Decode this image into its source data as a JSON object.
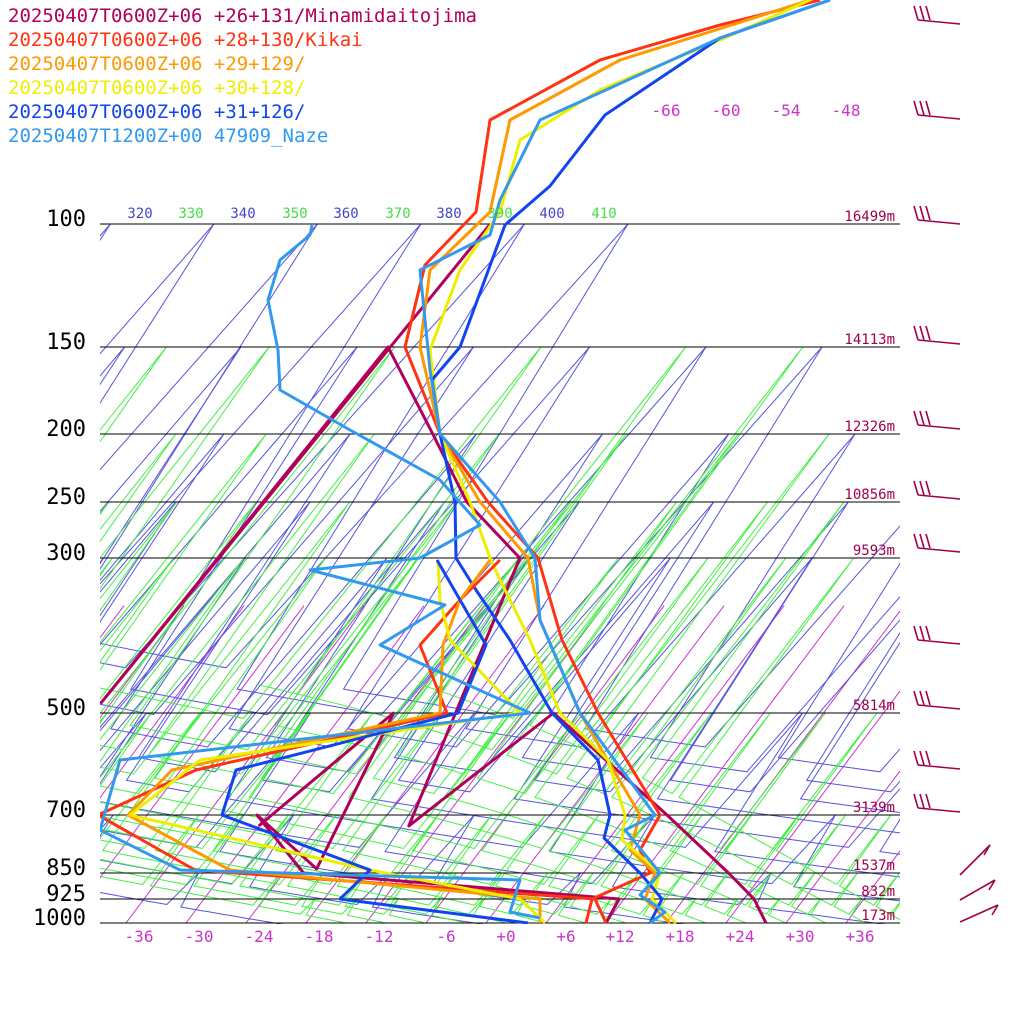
{
  "chart_data": {
    "type": "skew-t log-p sounding",
    "legend": [
      {
        "label": "20250407T0600Z+06 +26+131/Minamidaitojima",
        "color": "#b0005a"
      },
      {
        "label": "20250407T0600Z+06 +28+130/Kikai",
        "color": "#ff3311"
      },
      {
        "label": "20250407T0600Z+06 +29+129/",
        "color": "#ff9900"
      },
      {
        "label": "20250407T0600Z+06 +30+128/",
        "color": "#eeee00"
      },
      {
        "label": "20250407T0600Z+06 +31+126/",
        "color": "#1144ee"
      },
      {
        "label": "20250407T1200Z+00 47909_Naze",
        "color": "#3399ee"
      }
    ],
    "pressure_levels": [
      100,
      150,
      200,
      250,
      300,
      500,
      700,
      850,
      925,
      1000
    ],
    "pressure_labels": [
      "100",
      "150",
      "200",
      "250",
      "300",
      "500",
      "700",
      "850",
      "925",
      "1000"
    ],
    "height_labels": [
      {
        "p": 100,
        "text": "16499m"
      },
      {
        "p": 150,
        "text": "14113m"
      },
      {
        "p": 200,
        "text": "12326m"
      },
      {
        "p": 250,
        "text": "10856m"
      },
      {
        "p": 300,
        "text": "9593m"
      },
      {
        "p": 500,
        "text": "5814m"
      },
      {
        "p": 700,
        "text": "3139m"
      },
      {
        "p": 850,
        "text": "1537m"
      },
      {
        "p": 925,
        "text": "832m"
      },
      {
        "p": 1000,
        "text": "173m"
      }
    ],
    "temperature_ticks": [
      "-36",
      "-30",
      "-24",
      "-18",
      "-12",
      "-6",
      "+0",
      "+6",
      "+12",
      "+18",
      "+24",
      "+30",
      "+36"
    ],
    "upper_temperature_labels": [
      "-66",
      "-60",
      "-54",
      "-48"
    ],
    "theta_e_labels": [
      "320",
      "330",
      "340",
      "350",
      "360",
      "370",
      "380",
      "390",
      "400",
      "410"
    ],
    "xlim": [
      -40,
      40
    ],
    "ylim": [
      1000,
      100
    ],
    "series": [
      {
        "name": "Minamidaitojima",
        "color": "#b0005a",
        "temperature": [
          [
            1000,
            26
          ],
          [
            925,
            23
          ],
          [
            850,
            18.5
          ],
          [
            700,
            8
          ],
          [
            500,
            -11
          ],
          [
            400,
            -17
          ],
          [
            300,
            -26
          ],
          [
            250,
            -35.5
          ],
          [
            200,
            -44
          ],
          [
            150,
            -55
          ],
          [
            125,
            -57
          ],
          [
            100,
            -54
          ]
        ],
        "dewpoint": [
          [
            1000,
            10
          ],
          [
            925,
            9.5
          ],
          [
            850,
            -24
          ],
          [
            700,
            -33
          ],
          [
            600,
            -23
          ],
          [
            500,
            -27
          ],
          [
            400,
            -32
          ]
        ]
      }
    ]
  },
  "colors": {
    "isotherm": "#cc33cc",
    "isobar": "#000000",
    "dry_adiabat": "#5555dd",
    "moist_adiabat": "#44ee44",
    "wind_barb": "#a0004a",
    "height_label": "#a0004a"
  },
  "wind_barbs": "right-side wind barbs"
}
